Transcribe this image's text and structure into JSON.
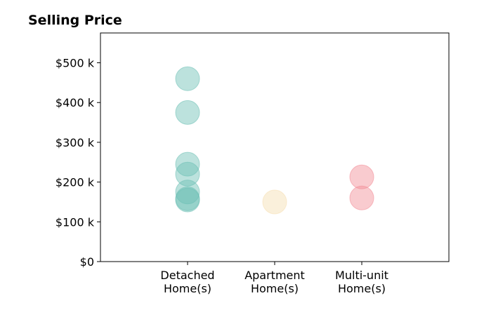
{
  "chart_data": {
    "type": "scatter",
    "title": "Selling Price",
    "xlabel": "",
    "ylabel": "",
    "categories": [
      {
        "lines": [
          "Detached",
          "Home(s)"
        ]
      },
      {
        "lines": [
          "Apartment",
          "Home(s)"
        ]
      },
      {
        "lines": [
          "Multi-unit",
          "Home(s)"
        ]
      }
    ],
    "xlim": [
      0,
      4
    ],
    "ylim": [
      0,
      575
    ],
    "y_ticks": [
      {
        "value": 0,
        "label": "$0"
      },
      {
        "value": 100,
        "label": "$100 k"
      },
      {
        "value": 200,
        "label": "$200 k"
      },
      {
        "value": 300,
        "label": "$300 k"
      },
      {
        "value": 400,
        "label": "$400 k"
      },
      {
        "value": 500,
        "label": "$500 k"
      }
    ],
    "grid": false,
    "series": [
      {
        "category_index": 0,
        "color": "#6bbfb4",
        "values": [
          460,
          375,
          245,
          220,
          175,
          158,
          155
        ]
      },
      {
        "category_index": 1,
        "color": "#f5deb0",
        "values": [
          150
        ]
      },
      {
        "category_index": 2,
        "color": "#f28b95",
        "values": [
          213,
          160
        ]
      }
    ]
  }
}
